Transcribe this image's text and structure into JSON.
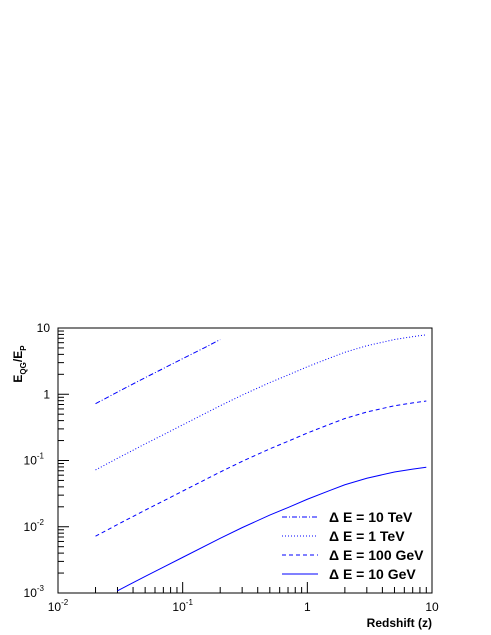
{
  "chart_data": {
    "type": "line",
    "xscale": "log",
    "yscale": "log",
    "xlim": [
      0.01,
      10
    ],
    "ylim": [
      0.001,
      10
    ],
    "xlabel": "Redshift (z)",
    "ylabel": {
      "main": "E",
      "sub1": "QG",
      "sep": "/E",
      "sub2": "P"
    },
    "xticks": [
      {
        "value": 0.01,
        "base": "10",
        "exp": "-2"
      },
      {
        "value": 0.1,
        "base": "10",
        "exp": "-1"
      },
      {
        "value": 1,
        "base": "1",
        "exp": ""
      },
      {
        "value": 10,
        "base": "10",
        "exp": ""
      }
    ],
    "yticks": [
      {
        "value": 0.001,
        "base": "10",
        "exp": "-3"
      },
      {
        "value": 0.01,
        "base": "10",
        "exp": "-2"
      },
      {
        "value": 0.1,
        "base": "10",
        "exp": "-1"
      },
      {
        "value": 1,
        "base": "1",
        "exp": ""
      },
      {
        "value": 10,
        "base": "10",
        "exp": ""
      }
    ],
    "grid": false,
    "legend_position": "bottom-right",
    "color": "#0000ff",
    "series": [
      {
        "name": "Δ E = 10 TeV",
        "dash": "dashdot",
        "x": [
          0.02,
          0.03,
          0.05,
          0.07,
          0.1,
          0.15,
          0.2
        ],
        "y": [
          0.72,
          1.08,
          1.78,
          2.45,
          3.45,
          5.05,
          6.7
        ]
      },
      {
        "name": "Δ E = 1 TeV",
        "dash": "dotted",
        "x": [
          0.02,
          0.03,
          0.05,
          0.07,
          0.1,
          0.2,
          0.3,
          0.5,
          0.7,
          1,
          1.5,
          2,
          3,
          5,
          7,
          9
        ],
        "y": [
          0.072,
          0.108,
          0.178,
          0.245,
          0.345,
          0.67,
          0.97,
          1.5,
          1.95,
          2.6,
          3.5,
          4.3,
          5.4,
          6.7,
          7.4,
          7.9
        ]
      },
      {
        "name": "Δ E = 100 GeV",
        "dash": "dashed",
        "x": [
          0.02,
          0.03,
          0.05,
          0.07,
          0.1,
          0.2,
          0.3,
          0.5,
          0.7,
          1,
          1.5,
          2,
          3,
          5,
          7,
          9
        ],
        "y": [
          0.0072,
          0.0108,
          0.0178,
          0.0245,
          0.0345,
          0.067,
          0.097,
          0.15,
          0.195,
          0.26,
          0.35,
          0.43,
          0.54,
          0.67,
          0.74,
          0.79
        ]
      },
      {
        "name": "Δ E = 10 GeV",
        "dash": "solid",
        "x": [
          0.03,
          0.05,
          0.07,
          0.1,
          0.2,
          0.3,
          0.5,
          0.7,
          1,
          1.5,
          2,
          3,
          5,
          7,
          9
        ],
        "y": [
          0.00108,
          0.00178,
          0.00245,
          0.00345,
          0.0067,
          0.0097,
          0.015,
          0.0195,
          0.026,
          0.035,
          0.043,
          0.054,
          0.067,
          0.074,
          0.079
        ]
      }
    ]
  }
}
